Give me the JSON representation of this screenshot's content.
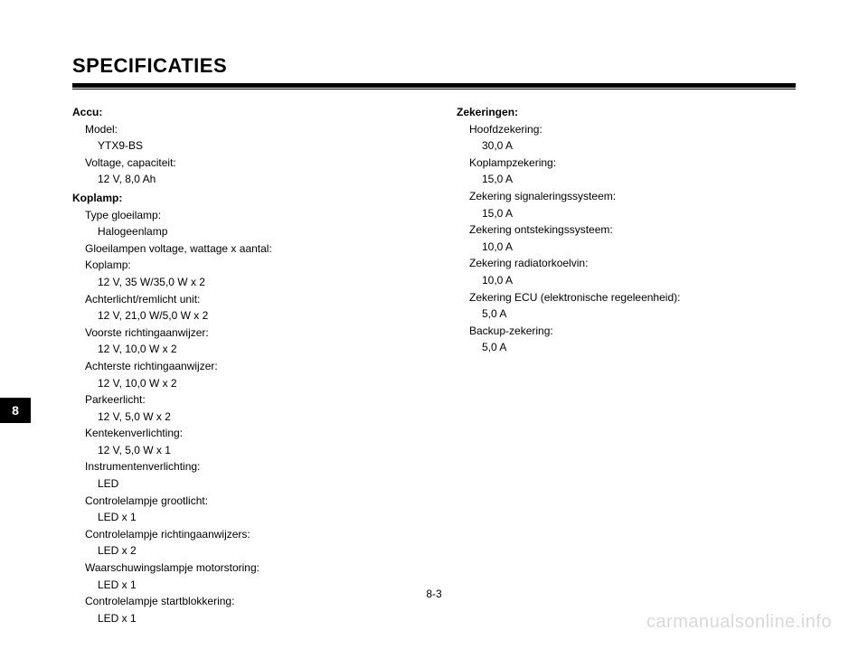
{
  "title": "SPECIFICATIES",
  "tab_number": "8",
  "page_number": "8-3",
  "watermark": "carmanualsonline.info",
  "left_column": {
    "sections": [
      {
        "heading": "Accu:",
        "items": [
          {
            "label": "Model:",
            "value": "YTX9-BS"
          },
          {
            "label": "Voltage, capaciteit:",
            "value": "12 V, 8,0 Ah"
          }
        ]
      },
      {
        "heading": "Koplamp:",
        "items": [
          {
            "label": "Type gloeilamp:",
            "value": "Halogeenlamp"
          },
          {
            "label": "Gloeilampen voltage, wattage x aantal:",
            "value": null
          },
          {
            "label": "Koplamp:",
            "value": "12 V, 35 W/35,0 W x 2"
          },
          {
            "label": "Achterlicht/remlicht unit:",
            "value": "12 V, 21,0 W/5,0 W x 2"
          },
          {
            "label": "Voorste richtingaanwijzer:",
            "value": "12 V, 10,0 W x 2"
          },
          {
            "label": "Achterste richtingaanwijzer:",
            "value": "12 V, 10,0 W x 2"
          },
          {
            "label": "Parkeerlicht:",
            "value": "12 V, 5,0 W x 2"
          },
          {
            "label": "Kentekenverlichting:",
            "value": "12 V, 5,0 W x 1"
          },
          {
            "label": "Instrumentenverlichting:",
            "value": "LED"
          },
          {
            "label": "Controlelampje grootlicht:",
            "value": "LED x 1"
          },
          {
            "label": "Controlelampje richtingaanwijzers:",
            "value": "LED x 2"
          },
          {
            "label": "Waarschuwingslampje motorstoring:",
            "value": "LED x 1"
          },
          {
            "label": "Controlelampje startblokkering:",
            "value": "LED x 1"
          }
        ]
      }
    ]
  },
  "right_column": {
    "sections": [
      {
        "heading": "Zekeringen:",
        "items": [
          {
            "label": "Hoofdzekering:",
            "value": "30,0 A"
          },
          {
            "label": "Koplampzekering:",
            "value": "15,0 A"
          },
          {
            "label": "Zekering signaleringssysteem:",
            "value": "15,0 A"
          },
          {
            "label": "Zekering ontstekingssysteem:",
            "value": "10,0 A"
          },
          {
            "label": "Zekering radiatorkoelvin:",
            "value": "10,0 A"
          },
          {
            "label": "Zekering ECU (elektronische regeleenheid):",
            "value": "5,0 A"
          },
          {
            "label": "Backup-zekering:",
            "value": "5,0 A"
          }
        ]
      }
    ]
  }
}
